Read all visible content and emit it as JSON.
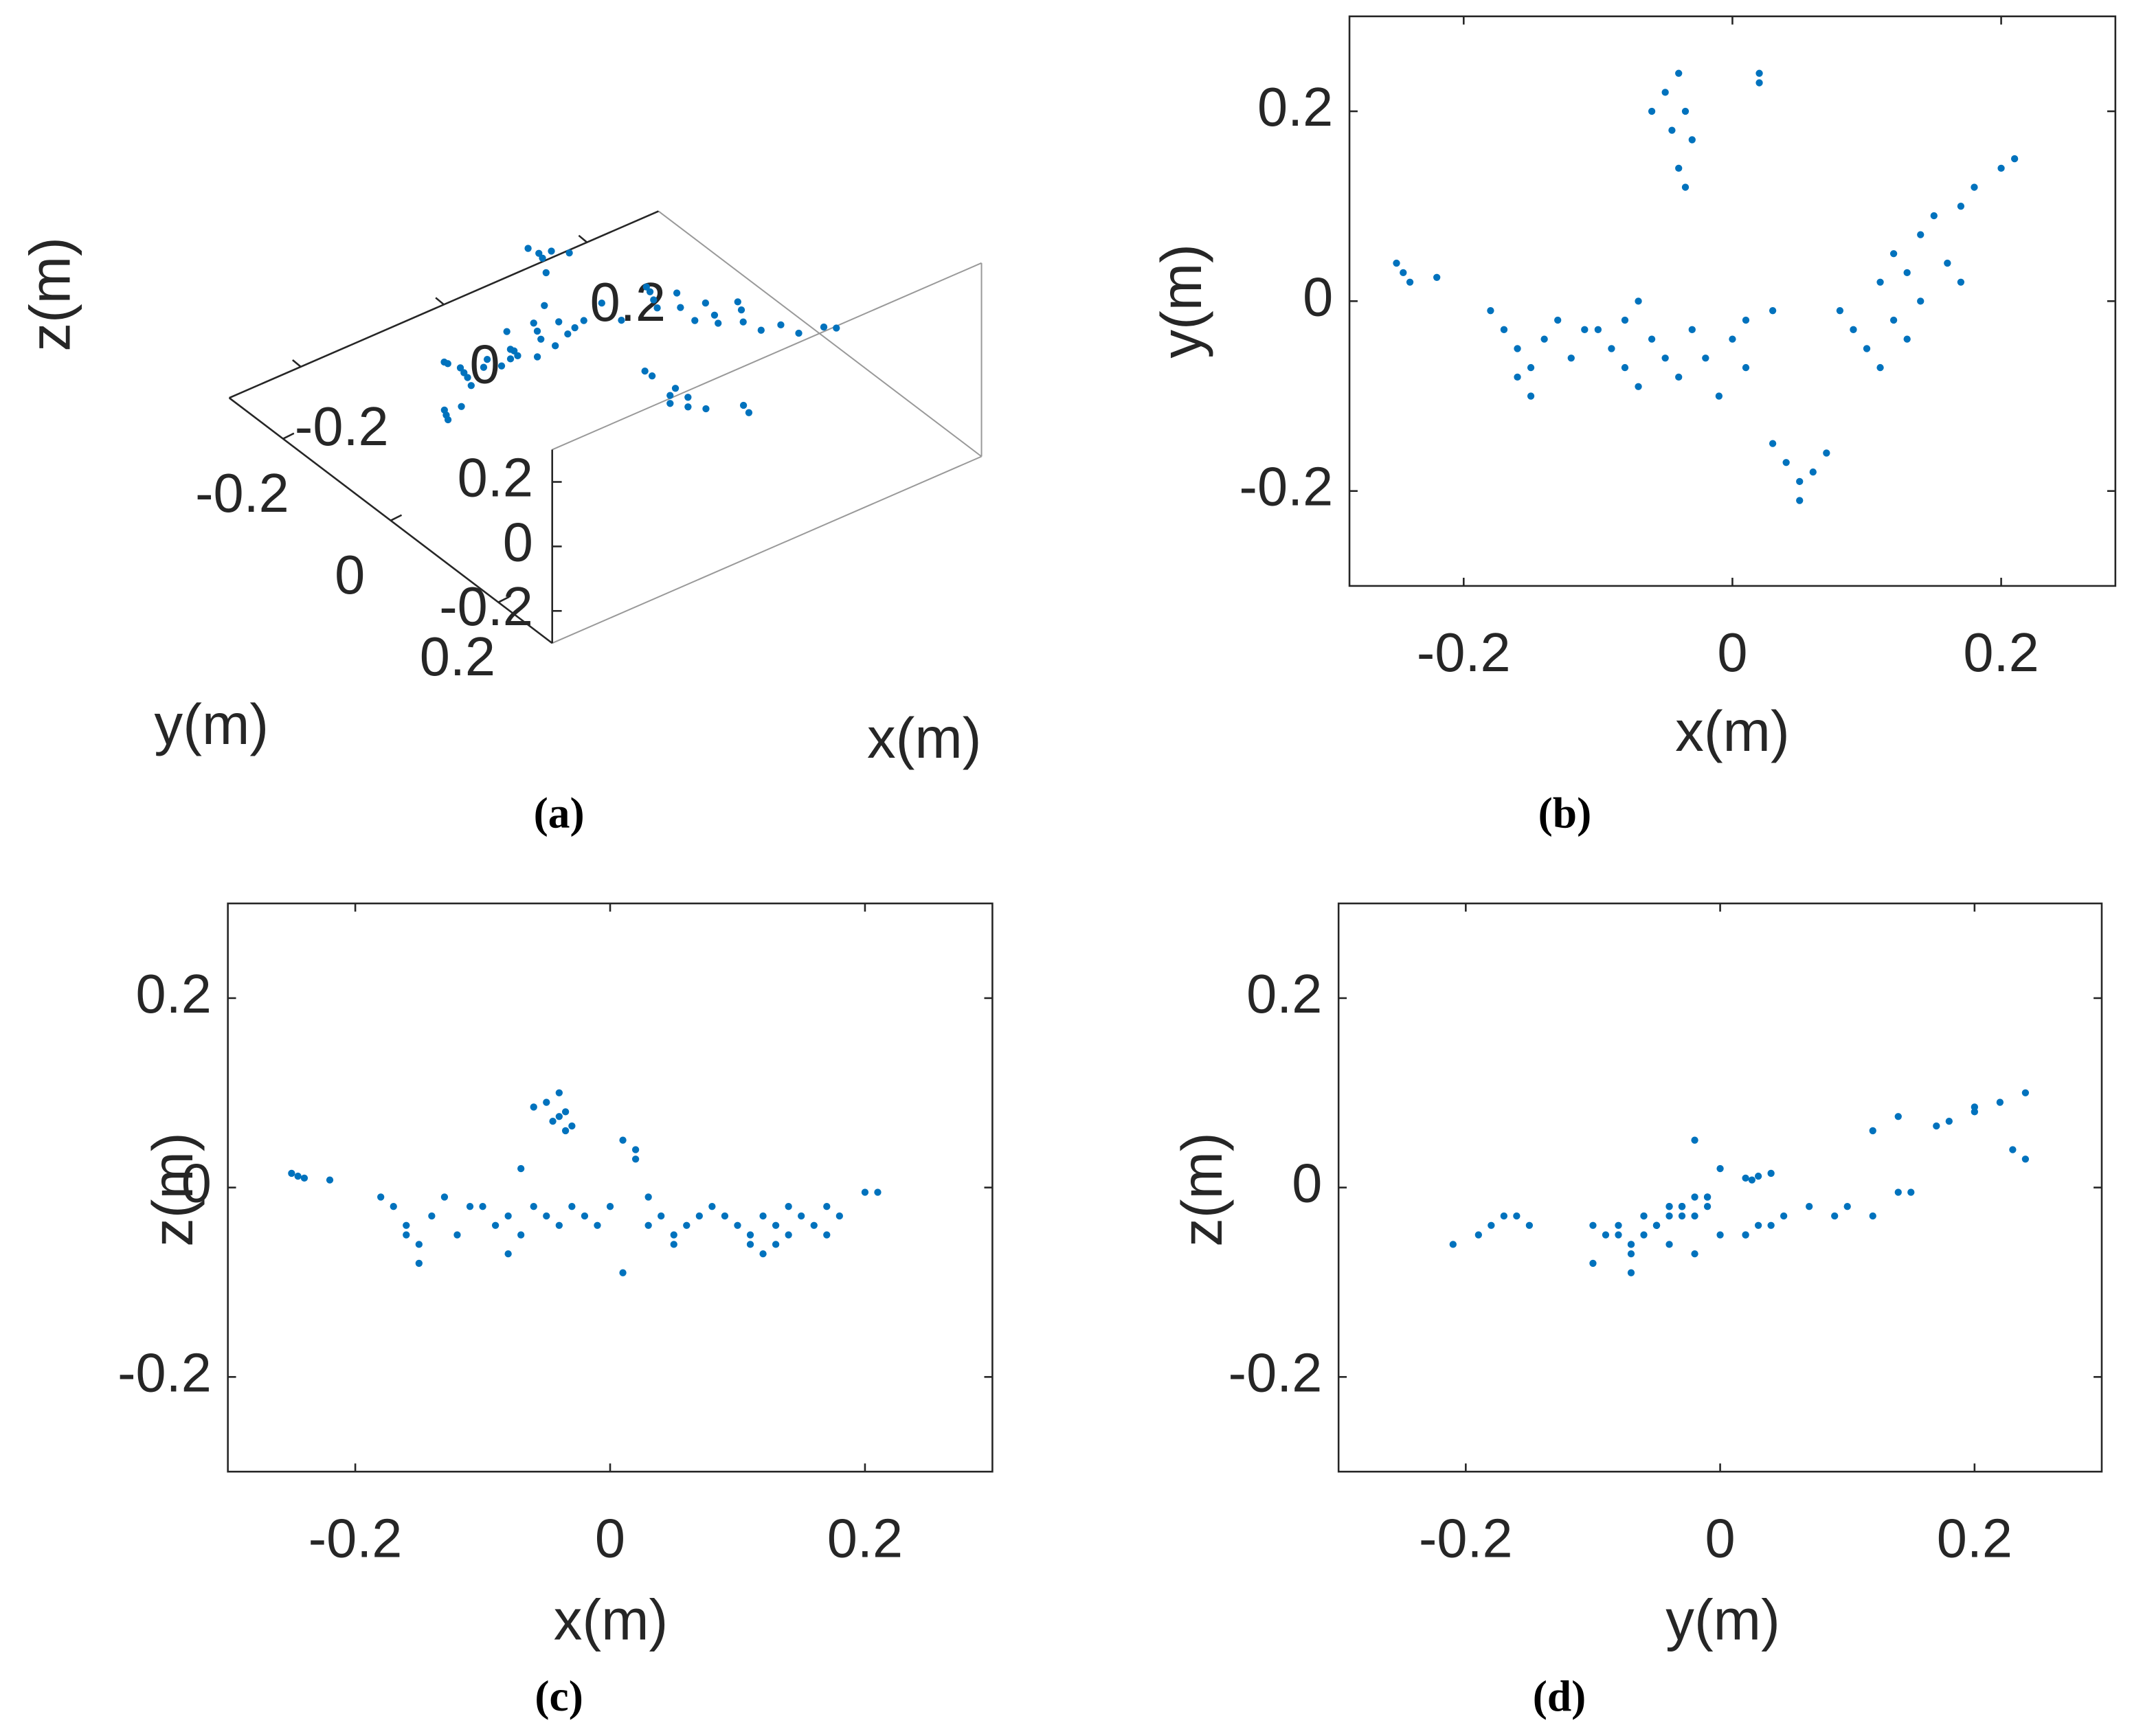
{
  "chart_data": [
    {
      "type": "scatter3d",
      "caption": "(a)",
      "color": "#0072bd",
      "xlabel": "x(m)",
      "ylabel": "y(m)",
      "zlabel": "z(m)",
      "xlim": [
        -0.3,
        0.3
      ],
      "ylim": [
        -0.3,
        0.3
      ],
      "zlim": [
        -0.3,
        0.3
      ],
      "xticks": [
        -0.2,
        0,
        0.2
      ],
      "yticks": [
        -0.2,
        0,
        0.2
      ],
      "zticks": [
        -0.2,
        0,
        0.2
      ],
      "x": [
        -0.25,
        -0.245,
        -0.24,
        -0.22,
        -0.05,
        -0.04,
        -0.035,
        -0.045,
        -0.03,
        -0.04,
        -0.035,
        -0.06,
        0.02,
        0.02,
        -0.18,
        -0.17,
        -0.16,
        -0.15,
        -0.15,
        -0.14,
        -0.13,
        -0.12,
        -0.11,
        -0.16,
        -0.1,
        -0.09,
        -0.08,
        -0.08,
        -0.07,
        -0.06,
        -0.05,
        -0.04,
        -0.03,
        -0.02,
        -0.01,
        0,
        0.01,
        0.01,
        -0.07,
        0.03,
        0.03,
        0.04,
        0.05,
        0.05,
        0.06,
        0.07,
        0.08,
        0.09,
        0.1,
        0.11,
        0.11,
        0.12,
        0.12,
        0.13,
        0.14,
        0.14,
        0.15,
        0.16,
        0.17,
        0.18,
        0.17,
        0.13,
        0.2,
        0.21
      ],
      "y": [
        0.04,
        0.03,
        0.02,
        0.025,
        0.22,
        0.24,
        0.2,
        0.18,
        0.17,
        0.14,
        0.12,
        0.2,
        0.24,
        0.23,
        -0.01,
        -0.03,
        -0.05,
        -0.07,
        -0.1,
        -0.04,
        -0.02,
        -0.06,
        -0.03,
        -0.08,
        -0.03,
        -0.05,
        -0.07,
        -0.02,
        -0.09,
        -0.04,
        -0.06,
        -0.08,
        -0.03,
        -0.06,
        -0.1,
        -0.04,
        -0.02,
        -0.07,
        0,
        -0.01,
        -0.15,
        -0.17,
        -0.19,
        -0.21,
        -0.18,
        -0.16,
        -0.01,
        -0.03,
        -0.05,
        -0.07,
        0.02,
        -0.02,
        0.05,
        0.03,
        0,
        0.07,
        0.09,
        0.04,
        0.1,
        0.12,
        0.02,
        -0.04,
        0.14,
        0.15
      ],
      "z": [
        0.015,
        0.012,
        0.01,
        0.008,
        0.09,
        0.1,
        0.08,
        0.07,
        0.065,
        0.075,
        0.06,
        0.085,
        0.03,
        0.04,
        -0.01,
        -0.02,
        -0.04,
        -0.06,
        -0.08,
        -0.03,
        -0.01,
        -0.05,
        -0.02,
        -0.05,
        -0.02,
        -0.04,
        -0.07,
        -0.03,
        -0.05,
        -0.02,
        -0.03,
        -0.04,
        -0.02,
        -0.03,
        -0.04,
        -0.02,
        0.05,
        -0.09,
        0.02,
        -0.01,
        -0.04,
        -0.03,
        -0.05,
        -0.06,
        -0.04,
        -0.03,
        -0.02,
        -0.03,
        -0.04,
        -0.06,
        -0.05,
        -0.07,
        -0.03,
        -0.04,
        -0.05,
        -0.02,
        -0.03,
        -0.04,
        -0.02,
        -0.03,
        -0.05,
        -0.06,
        -0.005,
        -0.005
      ]
    },
    {
      "type": "scatter",
      "caption": "(b)",
      "color": "#0072bd",
      "xlabel": "x(m)",
      "ylabel": "y(m)",
      "xlim": [
        -0.285,
        0.285
      ],
      "ylim": [
        -0.3,
        0.3
      ],
      "xticks": [
        -0.2,
        0,
        0.2
      ],
      "yticks": [
        -0.2,
        0,
        0.2
      ],
      "x": [
        -0.25,
        -0.245,
        -0.24,
        -0.22,
        -0.05,
        -0.04,
        -0.035,
        -0.045,
        -0.03,
        -0.04,
        -0.035,
        -0.06,
        0.02,
        0.02,
        -0.18,
        -0.17,
        -0.16,
        -0.15,
        -0.15,
        -0.14,
        -0.13,
        -0.12,
        -0.11,
        -0.16,
        -0.1,
        -0.09,
        -0.08,
        -0.08,
        -0.07,
        -0.06,
        -0.05,
        -0.04,
        -0.03,
        -0.02,
        -0.01,
        0,
        0.01,
        0.01,
        -0.07,
        0.03,
        0.03,
        0.04,
        0.05,
        0.05,
        0.06,
        0.07,
        0.08,
        0.09,
        0.1,
        0.11,
        0.11,
        0.12,
        0.12,
        0.13,
        0.14,
        0.14,
        0.15,
        0.16,
        0.17,
        0.18,
        0.17,
        0.13,
        0.2,
        0.21
      ],
      "y": [
        0.04,
        0.03,
        0.02,
        0.025,
        0.22,
        0.24,
        0.2,
        0.18,
        0.17,
        0.14,
        0.12,
        0.2,
        0.24,
        0.23,
        -0.01,
        -0.03,
        -0.05,
        -0.07,
        -0.1,
        -0.04,
        -0.02,
        -0.06,
        -0.03,
        -0.08,
        -0.03,
        -0.05,
        -0.07,
        -0.02,
        -0.09,
        -0.04,
        -0.06,
        -0.08,
        -0.03,
        -0.06,
        -0.1,
        -0.04,
        -0.02,
        -0.07,
        0,
        -0.01,
        -0.15,
        -0.17,
        -0.19,
        -0.21,
        -0.18,
        -0.16,
        -0.01,
        -0.03,
        -0.05,
        -0.07,
        0.02,
        -0.02,
        0.05,
        0.03,
        0,
        0.07,
        0.09,
        0.04,
        0.1,
        0.12,
        0.02,
        -0.04,
        0.14,
        0.15
      ]
    },
    {
      "type": "scatter",
      "caption": "(c)",
      "color": "#0072bd",
      "xlabel": "x(m)",
      "ylabel": "z(m)",
      "xlim": [
        -0.3,
        0.3
      ],
      "ylim": [
        -0.3,
        0.3
      ],
      "xticks": [
        -0.2,
        0,
        0.2
      ],
      "yticks": [
        -0.2,
        0,
        0.2
      ],
      "x": [
        -0.25,
        -0.245,
        -0.24,
        -0.22,
        -0.05,
        -0.04,
        -0.035,
        -0.045,
        -0.03,
        -0.04,
        -0.035,
        -0.06,
        0.02,
        0.02,
        -0.18,
        -0.17,
        -0.16,
        -0.15,
        -0.15,
        -0.14,
        -0.13,
        -0.12,
        -0.11,
        -0.16,
        -0.1,
        -0.09,
        -0.08,
        -0.08,
        -0.07,
        -0.06,
        -0.05,
        -0.04,
        -0.03,
        -0.02,
        -0.01,
        0,
        0.01,
        0.01,
        -0.07,
        0.03,
        0.03,
        0.04,
        0.05,
        0.05,
        0.06,
        0.07,
        0.08,
        0.09,
        0.1,
        0.11,
        0.11,
        0.12,
        0.12,
        0.13,
        0.14,
        0.14,
        0.15,
        0.16,
        0.17,
        0.18,
        0.17,
        0.13,
        0.2,
        0.21
      ],
      "y": [
        0.015,
        0.012,
        0.01,
        0.008,
        0.09,
        0.1,
        0.08,
        0.07,
        0.065,
        0.075,
        0.06,
        0.085,
        0.03,
        0.04,
        -0.01,
        -0.02,
        -0.04,
        -0.06,
        -0.08,
        -0.03,
        -0.01,
        -0.05,
        -0.02,
        -0.05,
        -0.02,
        -0.04,
        -0.07,
        -0.03,
        -0.05,
        -0.02,
        -0.03,
        -0.04,
        -0.02,
        -0.03,
        -0.04,
        -0.02,
        0.05,
        -0.09,
        0.02,
        -0.01,
        -0.04,
        -0.03,
        -0.05,
        -0.06,
        -0.04,
        -0.03,
        -0.02,
        -0.03,
        -0.04,
        -0.06,
        -0.05,
        -0.07,
        -0.03,
        -0.04,
        -0.05,
        -0.02,
        -0.03,
        -0.04,
        -0.02,
        -0.03,
        -0.05,
        -0.06,
        -0.005,
        -0.005
      ]
    },
    {
      "type": "scatter",
      "caption": "(d)",
      "color": "#0072bd",
      "xlabel": "y(m)",
      "ylabel": "z(m)",
      "xlim": [
        -0.3,
        0.3
      ],
      "ylim": [
        -0.3,
        0.3
      ],
      "xticks": [
        -0.2,
        0,
        0.2
      ],
      "yticks": [
        -0.2,
        0,
        0.2
      ],
      "x": [
        0.04,
        0.03,
        0.02,
        0.025,
        0.22,
        0.24,
        0.2,
        0.18,
        0.17,
        0.14,
        0.12,
        0.2,
        0.24,
        0.23,
        -0.01,
        -0.03,
        -0.05,
        -0.07,
        -0.1,
        -0.04,
        -0.02,
        -0.06,
        -0.03,
        -0.08,
        -0.03,
        -0.05,
        -0.07,
        -0.02,
        -0.09,
        -0.04,
        -0.06,
        -0.08,
        -0.03,
        -0.06,
        -0.1,
        -0.04,
        -0.02,
        -0.07,
        0,
        -0.01,
        -0.15,
        -0.17,
        -0.19,
        -0.21,
        -0.18,
        -0.16,
        -0.01,
        -0.03,
        -0.05,
        -0.07,
        0.02,
        -0.02,
        0.05,
        0.03,
        0,
        0.07,
        0.09,
        0.04,
        0.1,
        0.12,
        0.02,
        -0.04,
        0.14,
        0.15
      ],
      "y": [
        0.015,
        0.012,
        0.01,
        0.008,
        0.09,
        0.1,
        0.08,
        0.07,
        0.065,
        0.075,
        0.06,
        0.085,
        0.03,
        0.04,
        -0.01,
        -0.02,
        -0.04,
        -0.06,
        -0.08,
        -0.03,
        -0.01,
        -0.05,
        -0.02,
        -0.05,
        -0.02,
        -0.04,
        -0.07,
        -0.03,
        -0.05,
        -0.02,
        -0.03,
        -0.04,
        -0.02,
        -0.03,
        -0.04,
        -0.02,
        0.05,
        -0.09,
        0.02,
        -0.01,
        -0.04,
        -0.03,
        -0.05,
        -0.06,
        -0.04,
        -0.03,
        -0.02,
        -0.03,
        -0.04,
        -0.06,
        -0.05,
        -0.07,
        -0.03,
        -0.04,
        -0.05,
        -0.02,
        -0.03,
        -0.04,
        -0.02,
        -0.03,
        -0.05,
        -0.06,
        -0.005,
        -0.005
      ]
    }
  ]
}
